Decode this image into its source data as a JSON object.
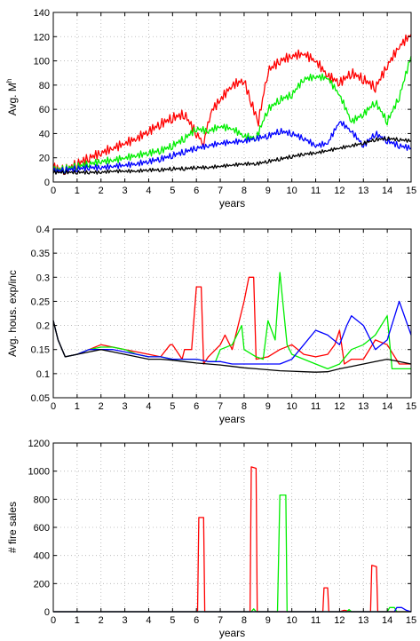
{
  "chart_data": [
    {
      "type": "line",
      "title": "",
      "xlabel": "years",
      "ylabel": "Avg. M",
      "ylabel_sup": "h",
      "xlim": [
        0,
        15
      ],
      "ylim": [
        0,
        140
      ],
      "xticks": [
        0,
        1,
        2,
        3,
        4,
        5,
        6,
        7,
        8,
        9,
        10,
        11,
        12,
        13,
        14,
        15
      ],
      "yticks": [
        0,
        20,
        40,
        60,
        80,
        100,
        120,
        140
      ],
      "grid": true,
      "series": [
        {
          "color": "#ff0000",
          "jitter": 4,
          "x": [
            0,
            0.5,
            1,
            1.5,
            2,
            2.5,
            3,
            3.5,
            4,
            4.5,
            5,
            5.5,
            6,
            6.3,
            6.6,
            7,
            7.5,
            8,
            8.3,
            8.6,
            9,
            9.5,
            10,
            10.5,
            11,
            11.5,
            12,
            12.5,
            13,
            13.5,
            14,
            14.5,
            15
          ],
          "y": [
            12,
            10,
            15,
            20,
            24,
            28,
            32,
            36,
            42,
            48,
            53,
            56,
            40,
            32,
            58,
            68,
            80,
            84,
            65,
            50,
            92,
            100,
            104,
            106,
            100,
            88,
            82,
            90,
            85,
            78,
            96,
            112,
            122
          ]
        },
        {
          "color": "#00ee00",
          "jitter": 3,
          "x": [
            0,
            0.5,
            1,
            1.5,
            2,
            2.5,
            3,
            3.5,
            4,
            4.5,
            5,
            5.5,
            6,
            6.5,
            7,
            7.5,
            8,
            8.5,
            9,
            9.5,
            10,
            10.5,
            11,
            11.5,
            12,
            12.5,
            13,
            13.5,
            14,
            14.5,
            15
          ],
          "y": [
            10,
            11,
            13,
            15,
            17,
            18,
            20,
            22,
            24,
            26,
            30,
            36,
            44,
            42,
            46,
            44,
            38,
            36,
            60,
            68,
            72,
            85,
            87,
            86,
            72,
            50,
            56,
            66,
            50,
            70,
            104
          ]
        },
        {
          "color": "#0000ff",
          "jitter": 2.5,
          "x": [
            0,
            0.5,
            1,
            1.5,
            2,
            2.5,
            3,
            3.5,
            4,
            4.5,
            5,
            5.5,
            6,
            6.5,
            7,
            7.5,
            8,
            8.5,
            9,
            9.5,
            10,
            10.5,
            11,
            11.5,
            12,
            12.5,
            13,
            13.5,
            14,
            14.5,
            15
          ],
          "y": [
            9,
            10,
            11,
            12,
            12,
            13,
            14,
            15,
            17,
            19,
            22,
            25,
            28,
            30,
            32,
            33,
            34,
            36,
            38,
            42,
            40,
            36,
            30,
            32,
            50,
            42,
            30,
            40,
            34,
            30,
            28
          ]
        },
        {
          "color": "#000000",
          "jitter": 1.5,
          "x": [
            0,
            0.5,
            1,
            1.5,
            2,
            2.5,
            3,
            3.5,
            4,
            4.5,
            5,
            5.5,
            6,
            6.5,
            7,
            7.5,
            8,
            8.5,
            9,
            9.5,
            10,
            10.5,
            11,
            11.5,
            12,
            12.5,
            13,
            13.5,
            14,
            14.5,
            15
          ],
          "y": [
            8,
            8,
            8,
            8,
            8,
            9,
            9,
            9,
            10,
            10,
            11,
            11,
            12,
            12,
            13,
            14,
            15,
            15,
            17,
            19,
            21,
            23,
            24,
            26,
            28,
            30,
            32,
            35,
            36,
            35,
            34
          ]
        }
      ]
    },
    {
      "type": "line",
      "title": "",
      "xlabel": "years",
      "ylabel": "Avg. hous. exp/inc",
      "xlim": [
        0,
        15
      ],
      "ylim": [
        0.05,
        0.4
      ],
      "xticks": [
        0,
        1,
        2,
        3,
        4,
        5,
        6,
        7,
        8,
        9,
        10,
        11,
        12,
        13,
        14,
        15
      ],
      "yticks": [
        0.05,
        0.1,
        0.15,
        0.2,
        0.25,
        0.3,
        0.35,
        0.4
      ],
      "grid": true,
      "series": [
        {
          "color": "#ff0000",
          "x": [
            0,
            0.2,
            0.5,
            1,
            1.5,
            2,
            2.5,
            3,
            3.5,
            4,
            4.5,
            4.9,
            5,
            5.4,
            5.5,
            5.8,
            6,
            6.2,
            6.3,
            6.5,
            7,
            7.2,
            7.5,
            8,
            8.2,
            8.4,
            8.5,
            9,
            9.5,
            10,
            10.5,
            11,
            11.5,
            11.8,
            12,
            12.2,
            12.5,
            13,
            13.5,
            14,
            14.5,
            15
          ],
          "y": [
            0.21,
            0.17,
            0.135,
            0.14,
            0.15,
            0.16,
            0.155,
            0.15,
            0.145,
            0.14,
            0.135,
            0.16,
            0.16,
            0.13,
            0.15,
            0.15,
            0.28,
            0.28,
            0.12,
            0.135,
            0.16,
            0.18,
            0.15,
            0.25,
            0.3,
            0.3,
            0.13,
            0.135,
            0.15,
            0.16,
            0.14,
            0.135,
            0.14,
            0.16,
            0.19,
            0.12,
            0.13,
            0.13,
            0.17,
            0.16,
            0.12,
            0.12
          ]
        },
        {
          "color": "#00ee00",
          "x": [
            0,
            0.2,
            0.5,
            1,
            1.5,
            2,
            2.5,
            3,
            3.5,
            4,
            4.5,
            5,
            5.5,
            6,
            6.5,
            6.8,
            7,
            7.5,
            7.9,
            8,
            8.5,
            8.8,
            9,
            9.3,
            9.5,
            9.8,
            10,
            10.5,
            11,
            11.5,
            12,
            12.5,
            13,
            13.5,
            14,
            14.2,
            14.5,
            15
          ],
          "y": [
            0.21,
            0.17,
            0.135,
            0.14,
            0.15,
            0.155,
            0.155,
            0.15,
            0.14,
            0.135,
            0.135,
            0.13,
            0.13,
            0.13,
            0.125,
            0.125,
            0.15,
            0.16,
            0.2,
            0.15,
            0.135,
            0.13,
            0.21,
            0.17,
            0.31,
            0.16,
            0.14,
            0.13,
            0.12,
            0.11,
            0.12,
            0.15,
            0.16,
            0.18,
            0.22,
            0.11,
            0.11,
            0.11
          ]
        },
        {
          "color": "#0000ff",
          "x": [
            0,
            0.2,
            0.5,
            1,
            1.5,
            2,
            2.5,
            3,
            3.5,
            4,
            4.5,
            5,
            5.5,
            6,
            6.5,
            7,
            7.5,
            8,
            8.5,
            9,
            9.5,
            10,
            10.5,
            11,
            11.5,
            12,
            12.3,
            12.5,
            13,
            13.5,
            14,
            14.5,
            15
          ],
          "y": [
            0.21,
            0.17,
            0.135,
            0.14,
            0.15,
            0.15,
            0.15,
            0.145,
            0.14,
            0.135,
            0.135,
            0.13,
            0.13,
            0.13,
            0.125,
            0.125,
            0.12,
            0.12,
            0.12,
            0.12,
            0.12,
            0.13,
            0.16,
            0.19,
            0.18,
            0.16,
            0.2,
            0.22,
            0.2,
            0.15,
            0.17,
            0.25,
            0.18
          ]
        },
        {
          "color": "#000000",
          "x": [
            0,
            0.2,
            0.5,
            1,
            1.5,
            2,
            2.5,
            3,
            3.5,
            4,
            4.5,
            5,
            5.5,
            6,
            6.5,
            7,
            7.5,
            8,
            8.5,
            9,
            9.5,
            10,
            10.5,
            11,
            11.5,
            12,
            12.5,
            13,
            13.5,
            14,
            14.5,
            15
          ],
          "y": [
            0.21,
            0.17,
            0.135,
            0.14,
            0.145,
            0.15,
            0.145,
            0.14,
            0.135,
            0.13,
            0.13,
            0.128,
            0.125,
            0.122,
            0.12,
            0.118,
            0.115,
            0.112,
            0.11,
            0.108,
            0.106,
            0.105,
            0.104,
            0.103,
            0.104,
            0.11,
            0.115,
            0.12,
            0.125,
            0.13,
            0.125,
            0.12
          ]
        }
      ]
    },
    {
      "type": "line",
      "title": "",
      "xlabel": "years",
      "ylabel": "# fire sales",
      "xlim": [
        0,
        15
      ],
      "ylim": [
        0,
        1200
      ],
      "xticks": [
        0,
        1,
        2,
        3,
        4,
        5,
        6,
        7,
        8,
        9,
        10,
        11,
        12,
        13,
        14,
        15
      ],
      "yticks": [
        0,
        200,
        400,
        600,
        800,
        1000,
        1200
      ],
      "grid": true,
      "series": [
        {
          "color": "#ff0000",
          "x": [
            0,
            6.05,
            6.1,
            6.3,
            6.35,
            8.25,
            8.3,
            8.5,
            8.55,
            11.3,
            11.35,
            11.5,
            11.55,
            12,
            12.2,
            12.5,
            13.3,
            13.35,
            13.55,
            13.6,
            15
          ],
          "y": [
            0,
            0,
            670,
            670,
            0,
            0,
            1030,
            1020,
            0,
            0,
            170,
            170,
            0,
            0,
            10,
            0,
            0,
            330,
            320,
            0,
            0
          ]
        },
        {
          "color": "#00ee00",
          "x": [
            0,
            8.3,
            8.4,
            8.5,
            9.4,
            9.5,
            9.75,
            9.8,
            12.3,
            12.4,
            12.5,
            14.0,
            14.1,
            14.3,
            14.4,
            15
          ],
          "y": [
            0,
            0,
            20,
            0,
            0,
            830,
            830,
            0,
            0,
            15,
            0,
            0,
            30,
            30,
            0,
            0
          ]
        },
        {
          "color": "#0000ff",
          "x": [
            0,
            14.3,
            14.4,
            14.6,
            14.8,
            15
          ],
          "y": [
            0,
            0,
            30,
            30,
            10,
            0
          ]
        },
        {
          "color": "#000000",
          "x": [
            0,
            15
          ],
          "y": [
            0,
            0
          ]
        }
      ]
    }
  ]
}
